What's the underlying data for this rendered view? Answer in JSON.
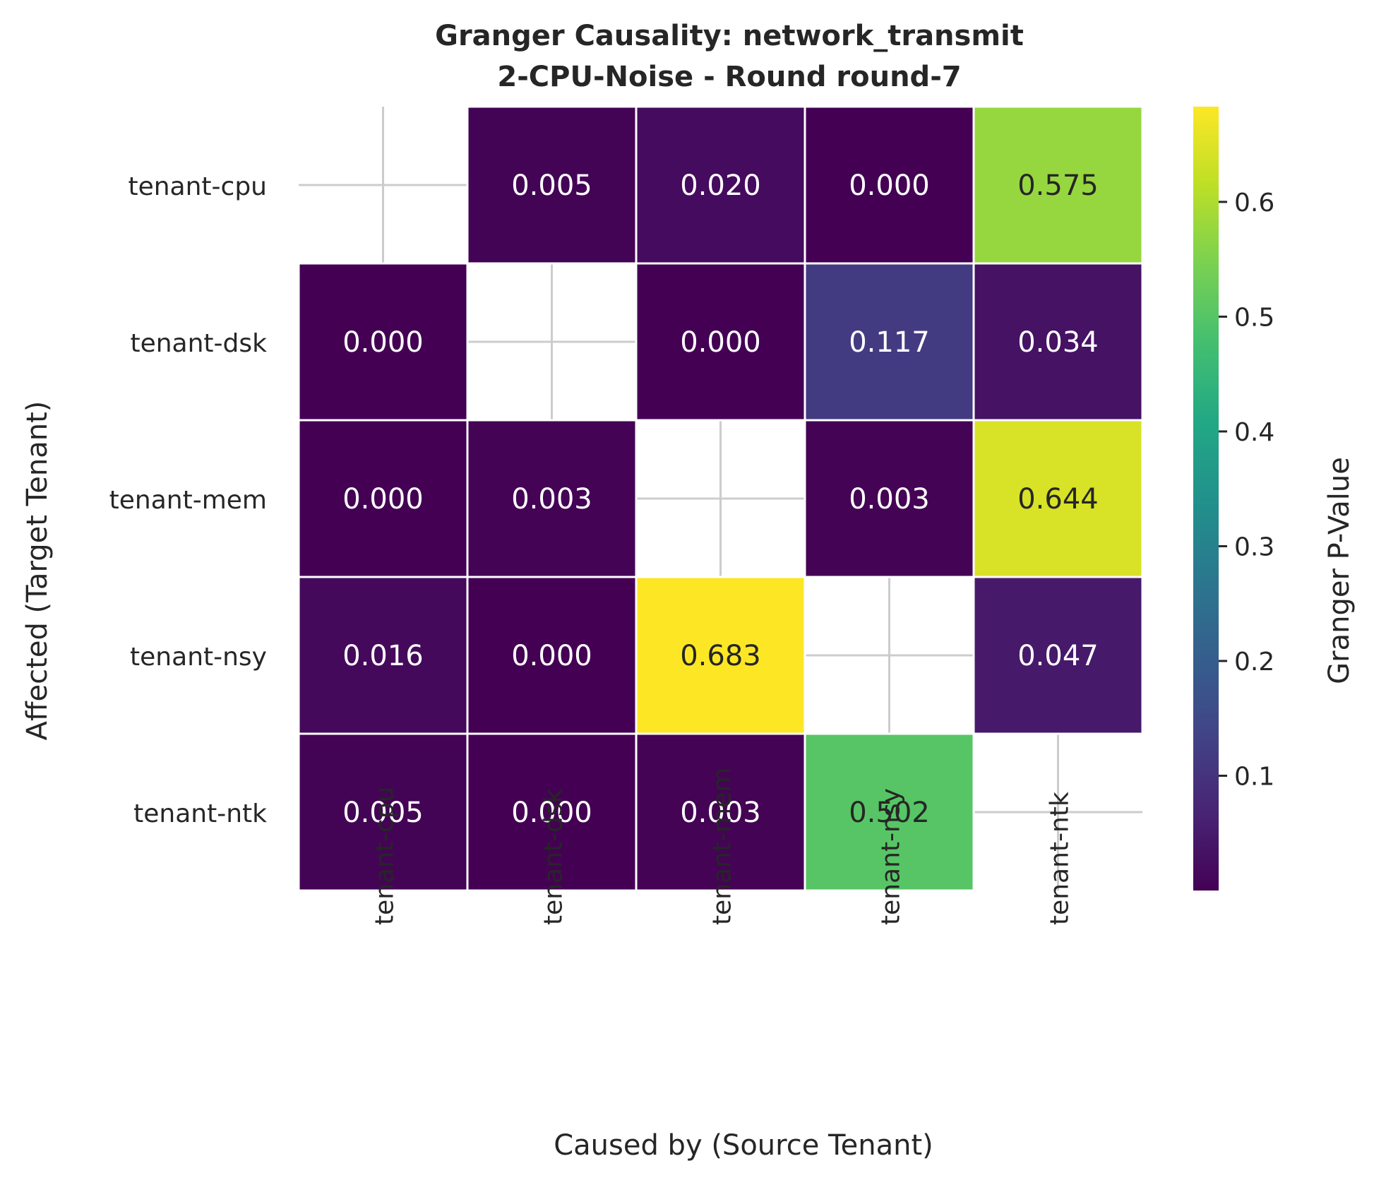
{
  "chart_data": {
    "type": "heatmap",
    "title": "Granger Causality: network_transmit",
    "subtitle": "2-CPU-Noise - Round round-7",
    "xlabel": "Caused by (Source Tenant)",
    "ylabel": "Affected (Target Tenant)",
    "x_categories": [
      "tenant-cpu",
      "tenant-dsk",
      "tenant-mem",
      "tenant-nsy",
      "tenant-ntk"
    ],
    "y_categories": [
      "tenant-cpu",
      "tenant-dsk",
      "tenant-mem",
      "tenant-nsy",
      "tenant-ntk"
    ],
    "values": [
      [
        null,
        0.005,
        0.02,
        0.0,
        0.575
      ],
      [
        0.0,
        null,
        0.0,
        0.117,
        0.034
      ],
      [
        0.0,
        0.003,
        null,
        0.003,
        0.644
      ],
      [
        0.016,
        0.0,
        0.683,
        null,
        0.047
      ],
      [
        0.005,
        0.0,
        0.003,
        0.502,
        null
      ]
    ],
    "cell_labels": [
      [
        "",
        "0.005",
        "0.020",
        "0.000",
        "0.575"
      ],
      [
        "0.000",
        "",
        "0.000",
        "0.117",
        "0.034"
      ],
      [
        "0.000",
        "0.003",
        "",
        "0.003",
        "0.644"
      ],
      [
        "0.016",
        "0.000",
        "0.683",
        "",
        "0.047"
      ],
      [
        "0.005",
        "0.000",
        "0.003",
        "0.502",
        ""
      ]
    ],
    "colormap": "viridis",
    "colorbar": {
      "label": "Granger P-Value",
      "vmin": 0.0,
      "vmax": 0.683,
      "ticks": [
        0.1,
        0.2,
        0.3,
        0.4,
        0.5,
        0.6
      ],
      "tick_labels": [
        "0.1",
        "0.2",
        "0.3",
        "0.4",
        "0.5",
        "0.6"
      ]
    },
    "grid": true,
    "legend": "colorbar-right"
  }
}
